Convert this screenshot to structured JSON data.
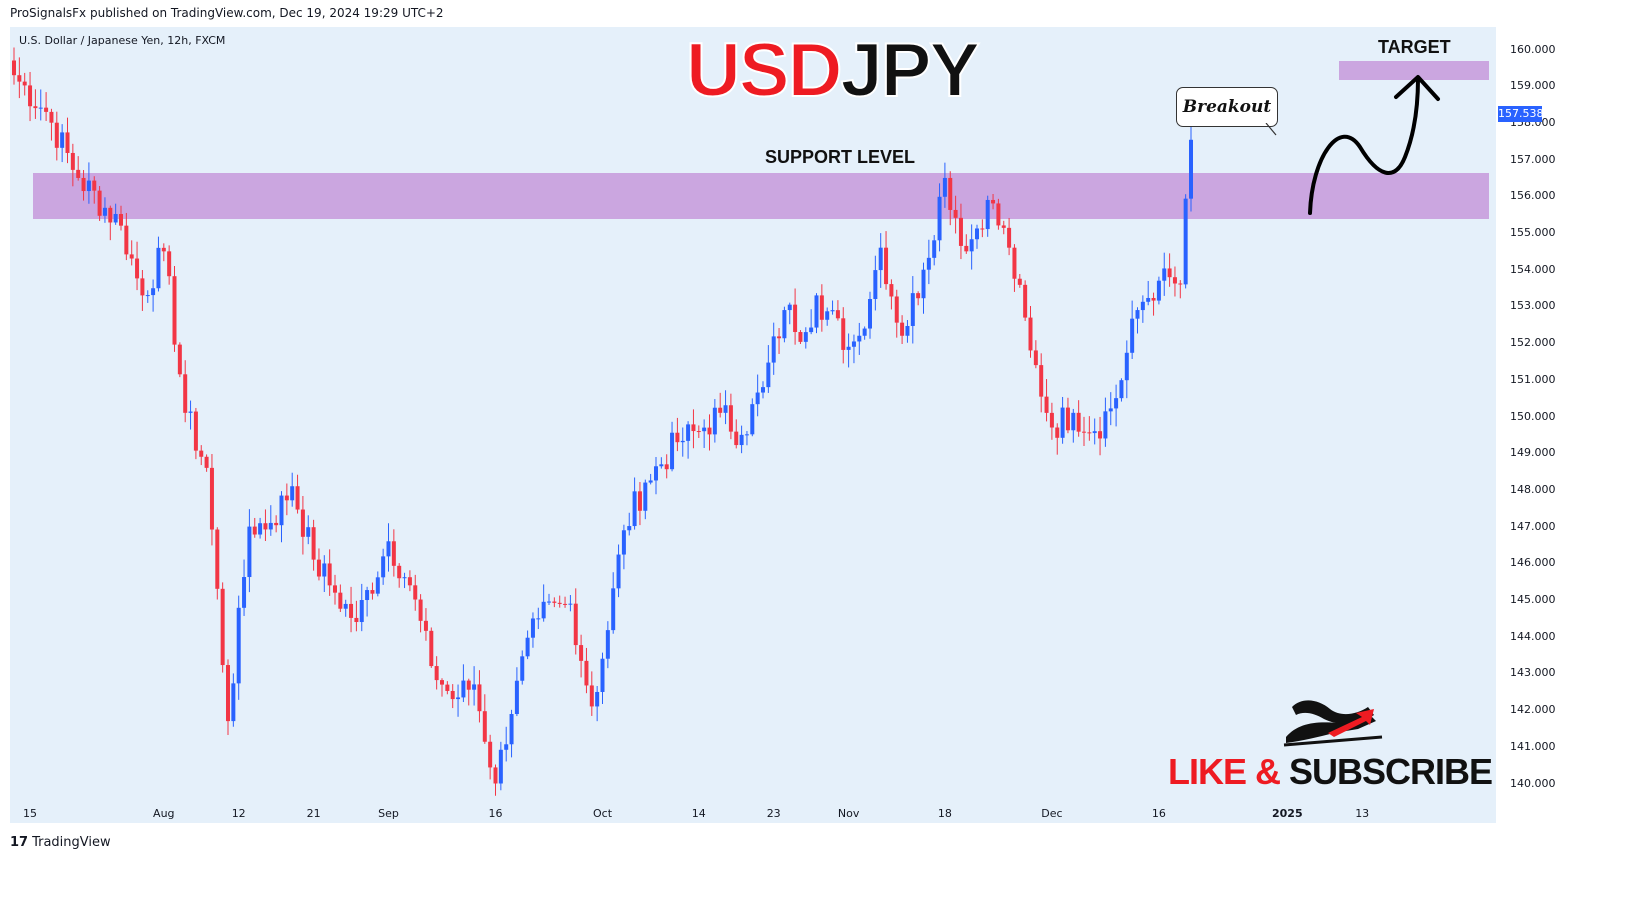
{
  "header": {
    "published": "ProSignalsFx published on TradingView.com, Dec 19, 2024 19:29 UTC+2"
  },
  "chart_header": {
    "symbol": "U.S. Dollar / Japanese Yen, 12h, FXCM"
  },
  "annotations": {
    "title_part1": "USD",
    "title_part2": "JPY",
    "support_label": "SUPPORT LEVEL",
    "target_label": "TARGET",
    "breakout_label": "Breakout",
    "like": "LIKE &",
    "subscribe": "SUBSCRIBE",
    "support_range": [
      155.4,
      156.6
    ],
    "target_range": [
      159.2,
      159.7
    ]
  },
  "footer": {
    "logo": "17",
    "brand": "TradingView"
  },
  "colors": {
    "up": "#2962ff",
    "down": "#f23645",
    "zone": "#cba6e0",
    "background": "#e5f0fa",
    "title_red": "#ee1b22"
  },
  "chart_data": {
    "type": "candlestick",
    "ylim": [
      139.7,
      160.6
    ],
    "y_ticks": [
      "160.000",
      "159.000",
      "158.000",
      "157.000",
      "156.000",
      "155.000",
      "154.000",
      "153.000",
      "152.000",
      "151.000",
      "150.000",
      "149.000",
      "148.000",
      "147.000",
      "146.000",
      "145.000",
      "144.000",
      "143.000",
      "142.000",
      "141.000",
      "140.000"
    ],
    "y_tick_values": [
      160,
      159,
      158,
      157,
      156,
      155,
      154,
      153,
      152,
      151,
      150,
      149,
      148,
      147,
      146,
      145,
      144,
      143,
      142,
      141,
      140
    ],
    "x_ticks": [
      "15",
      "Aug",
      "12",
      "21",
      "Sep",
      "16",
      "Oct",
      "14",
      "23",
      "Nov",
      "18",
      "Dec",
      "16",
      "2025",
      "13"
    ],
    "x_tick_bold": [
      false,
      false,
      false,
      false,
      false,
      false,
      false,
      false,
      false,
      false,
      false,
      false,
      false,
      true,
      false
    ],
    "x_tick_index": [
      3,
      28,
      42,
      56,
      70,
      90,
      110,
      128,
      142,
      156,
      174,
      194,
      214,
      238,
      252
    ],
    "last_price": "157.538",
    "close_path_anchors": [
      [
        0,
        159.3
      ],
      [
        6,
        158.3
      ],
      [
        12,
        156.5
      ],
      [
        20,
        155.2
      ],
      [
        24,
        153.3
      ],
      [
        28,
        154.5
      ],
      [
        32,
        150.1
      ],
      [
        36,
        148.6
      ],
      [
        40,
        141.7
      ],
      [
        44,
        147.0
      ],
      [
        48,
        147.1
      ],
      [
        52,
        148.1
      ],
      [
        56,
        146.1
      ],
      [
        60,
        145.2
      ],
      [
        64,
        144.4
      ],
      [
        70,
        146.6
      ],
      [
        74,
        145.4
      ],
      [
        78,
        143.2
      ],
      [
        82,
        142.3
      ],
      [
        86,
        142.7
      ],
      [
        90,
        140.0
      ],
      [
        94,
        142.8
      ],
      [
        98,
        144.5
      ],
      [
        104,
        144.9
      ],
      [
        108,
        142.1
      ],
      [
        110,
        143.4
      ],
      [
        114,
        146.9
      ],
      [
        118,
        148.2
      ],
      [
        124,
        149.3
      ],
      [
        128,
        149.6
      ],
      [
        132,
        150.1
      ],
      [
        136,
        149.5
      ],
      [
        140,
        150.8
      ],
      [
        144,
        152.9
      ],
      [
        148,
        152.3
      ],
      [
        150,
        153.3
      ],
      [
        156,
        151.9
      ],
      [
        158,
        152.2
      ],
      [
        162,
        154.6
      ],
      [
        166,
        152.2
      ],
      [
        170,
        154.0
      ],
      [
        174,
        156.5
      ],
      [
        178,
        154.5
      ],
      [
        182,
        155.9
      ],
      [
        186,
        154.6
      ],
      [
        190,
        151.8
      ],
      [
        194,
        149.7
      ],
      [
        198,
        150.1
      ],
      [
        202,
        149.6
      ],
      [
        206,
        150.5
      ],
      [
        210,
        152.9
      ],
      [
        214,
        153.7
      ],
      [
        218,
        153.6
      ],
      [
        220,
        157.54
      ]
    ]
  }
}
